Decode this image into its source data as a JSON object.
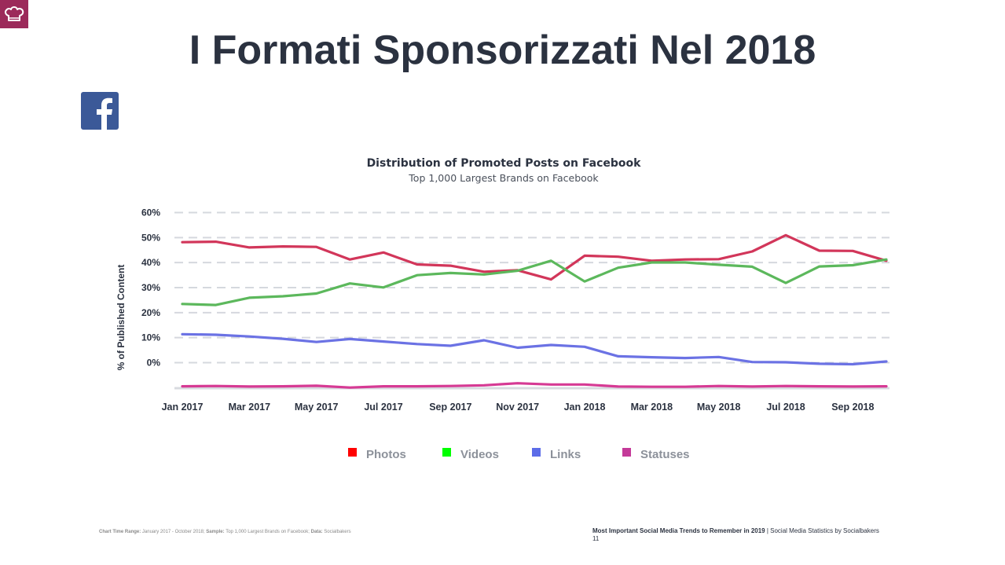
{
  "title": "I Formati Sponsorizzati Nel 2018",
  "icons": {
    "logo": "chef-hat-icon",
    "facebook": "facebook-icon"
  },
  "colors": {
    "logo_bg": "#9c2a5a",
    "facebook": "#3b5998"
  },
  "footer": {
    "range_label": "Chart Time Range:",
    "range_value": " January 2017 - October 2018;",
    "sample_label": " Sample:",
    "sample_value": " Top 1,000 Largest Brands on Facebook;",
    "data_label": " Data:",
    "data_value": " Socialbakers",
    "report_title": "Most Important Social Media Trends to Remember in 2019",
    "report_source": " | Social Media Statistics by Socialbakers",
    "page_number": "11"
  },
  "chart_data": {
    "type": "line",
    "title": "Distribution of Promoted Posts on Facebook",
    "subtitle": "Top 1,000 Largest Brands on Facebook",
    "ylabel": "% of Published Content",
    "ylim": [
      -10,
      60
    ],
    "yticks": [
      60,
      50,
      40,
      30,
      20,
      10,
      0
    ],
    "ytick_labels": [
      "60%",
      "50%",
      "40%",
      "30%",
      "20%",
      "10%",
      "0%"
    ],
    "x": [
      "Jan 2017",
      "Feb 2017",
      "Mar 2017",
      "Apr 2017",
      "May 2017",
      "Jun 2017",
      "Jul 2017",
      "Aug 2017",
      "Sep 2017",
      "Oct 2017",
      "Nov 2017",
      "Dec 2017",
      "Jan 2018",
      "Feb 2018",
      "Mar 2018",
      "Apr 2018",
      "May 2018",
      "Jun 2018",
      "Jul 2018",
      "Aug 2018",
      "Sep 2018",
      "Oct 2018"
    ],
    "xtick_labels": [
      "Jan 2017",
      "Mar 2017",
      "May 2017",
      "Jul 2017",
      "Sep 2017",
      "Nov 2017",
      "Jan 2018",
      "Mar 2018",
      "May 2018",
      "Jul 2018",
      "Sep 2018"
    ],
    "grid": true,
    "legend_position": "bottom",
    "series": [
      {
        "name": "Photos",
        "color": "#d2365a",
        "legend_color": "#ff0000",
        "values": [
          48.0,
          48.2,
          45.9,
          46.3,
          46.1,
          41.1,
          43.9,
          39.1,
          38.6,
          36.2,
          36.8,
          33.1,
          42.6,
          42.2,
          40.6,
          41.1,
          41.2,
          44.3,
          50.8,
          44.6,
          44.5,
          40.6
        ]
      },
      {
        "name": "Videos",
        "color": "#5cb85c",
        "legend_color": "#00ff00",
        "values": [
          23.3,
          22.9,
          25.8,
          26.4,
          27.5,
          31.5,
          29.9,
          34.8,
          35.7,
          35.1,
          36.6,
          40.6,
          32.3,
          37.8,
          39.9,
          39.9,
          39.0,
          38.2,
          31.7,
          38.3,
          38.8,
          41.1
        ]
      },
      {
        "name": "Links",
        "color": "#6b72e4",
        "legend_color": "#5c6ce8",
        "values": [
          11.2,
          11.0,
          10.3,
          9.4,
          8.1,
          9.3,
          8.3,
          7.3,
          6.6,
          8.8,
          5.8,
          6.9,
          6.2,
          2.4,
          2.0,
          1.7,
          2.1,
          0.1,
          0.0,
          -0.6,
          -0.8,
          0.3
        ]
      },
      {
        "name": "Statuses",
        "color": "#d63a94",
        "legend_color": "#c43a99",
        "values": [
          -9.6,
          -9.5,
          -9.7,
          -9.6,
          -9.4,
          -10.1,
          -9.6,
          -9.6,
          -9.5,
          -9.2,
          -8.4,
          -8.9,
          -8.9,
          -9.7,
          -9.8,
          -9.8,
          -9.5,
          -9.7,
          -9.5,
          -9.6,
          -9.7,
          -9.6
        ]
      }
    ]
  }
}
